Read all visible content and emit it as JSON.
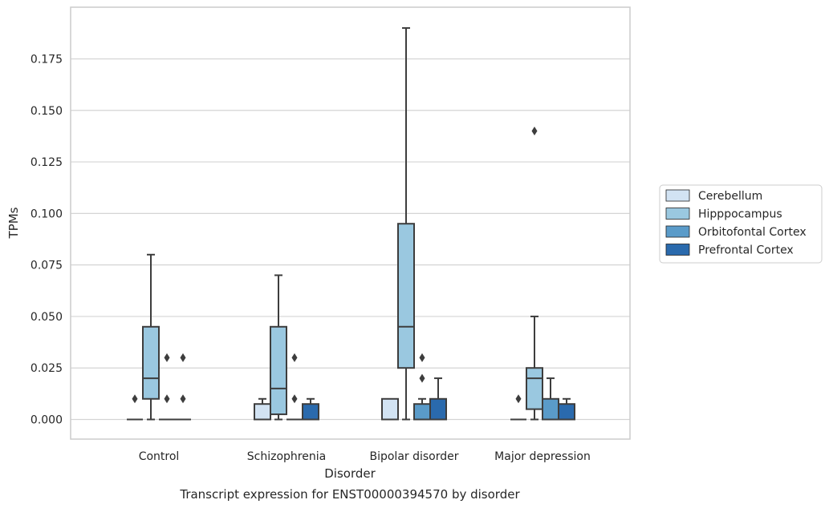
{
  "chart_data": {
    "type": "boxplot",
    "xlabel": "Disorder",
    "ylabel": "TPMs",
    "caption": "Transcript expression for ENST00000394570 by disorder",
    "ylim": [
      -0.0095,
      0.1995
    ],
    "yticks": [
      0.0,
      0.025,
      0.05,
      0.075,
      0.1,
      0.125,
      0.15,
      0.175
    ],
    "ytick_labels": [
      "0.000",
      "0.025",
      "0.050",
      "0.075",
      "0.100",
      "0.125",
      "0.150",
      "0.175"
    ],
    "grid": "horizontal",
    "legend_position": "right",
    "categories": [
      "Control",
      "Schizophrenia",
      "Bipolar disorder",
      "Major depression"
    ],
    "series": [
      {
        "name": "Cerebellum",
        "color": "#d2e3f3",
        "boxes": [
          {
            "whisker_low": 0.0,
            "q1": 0.0,
            "median": 0.0,
            "q3": 0.0,
            "whisker_high": 0.0,
            "outliers": [
              0.01
            ]
          },
          {
            "whisker_low": 0.0,
            "q1": 0.0,
            "median": 0.0,
            "q3": 0.0075,
            "whisker_high": 0.01,
            "outliers": []
          },
          {
            "whisker_low": 0.0,
            "q1": 0.0,
            "median": 0.0,
            "q3": 0.01,
            "whisker_high": 0.01,
            "outliers": []
          },
          {
            "whisker_low": 0.0,
            "q1": 0.0,
            "median": 0.0,
            "q3": 0.0,
            "whisker_high": 0.0,
            "outliers": [
              0.01
            ]
          }
        ]
      },
      {
        "name": "Hipppocampus",
        "color": "#9ac8e0",
        "boxes": [
          {
            "whisker_low": 0.0,
            "q1": 0.01,
            "median": 0.02,
            "q3": 0.045,
            "whisker_high": 0.08,
            "outliers": []
          },
          {
            "whisker_low": 0.0,
            "q1": 0.0025,
            "median": 0.015,
            "q3": 0.045,
            "whisker_high": 0.07,
            "outliers": []
          },
          {
            "whisker_low": 0.0,
            "q1": 0.025,
            "median": 0.045,
            "q3": 0.095,
            "whisker_high": 0.19,
            "outliers": []
          },
          {
            "whisker_low": 0.0,
            "q1": 0.005,
            "median": 0.02,
            "q3": 0.025,
            "whisker_high": 0.05,
            "outliers": [
              0.14
            ]
          }
        ]
      },
      {
        "name": "Orbitofontal Cortex",
        "color": "#5a9bc9",
        "boxes": [
          {
            "whisker_low": 0.0,
            "q1": 0.0,
            "median": 0.0,
            "q3": 0.0,
            "whisker_high": 0.0,
            "outliers": [
              0.01,
              0.03
            ]
          },
          {
            "whisker_low": 0.0,
            "q1": 0.0,
            "median": 0.0,
            "q3": 0.0,
            "whisker_high": 0.0,
            "outliers": [
              0.01,
              0.03
            ]
          },
          {
            "whisker_low": 0.0,
            "q1": 0.0,
            "median": 0.0,
            "q3": 0.0075,
            "whisker_high": 0.01,
            "outliers": [
              0.02,
              0.03
            ]
          },
          {
            "whisker_low": 0.0,
            "q1": 0.0,
            "median": 0.0,
            "q3": 0.01,
            "whisker_high": 0.02,
            "outliers": []
          }
        ]
      },
      {
        "name": "Prefrontal Cortex",
        "color": "#2a6aad",
        "boxes": [
          {
            "whisker_low": 0.0,
            "q1": 0.0,
            "median": 0.0,
            "q3": 0.0,
            "whisker_high": 0.0,
            "outliers": [
              0.01,
              0.03
            ]
          },
          {
            "whisker_low": 0.0,
            "q1": 0.0,
            "median": 0.0,
            "q3": 0.0075,
            "whisker_high": 0.01,
            "outliers": []
          },
          {
            "whisker_low": 0.0,
            "q1": 0.0,
            "median": 0.0,
            "q3": 0.01,
            "whisker_high": 0.02,
            "outliers": []
          },
          {
            "whisker_low": 0.0,
            "q1": 0.0,
            "median": 0.0,
            "q3": 0.0075,
            "whisker_high": 0.01,
            "outliers": []
          }
        ]
      }
    ]
  }
}
